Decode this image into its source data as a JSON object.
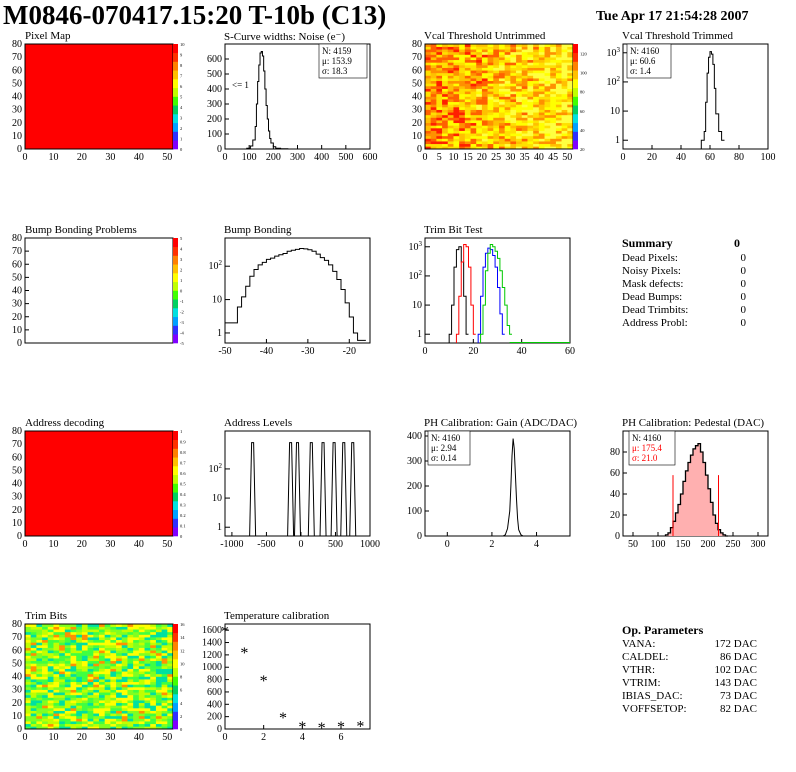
{
  "header": {
    "title": "M0846-070417.15:20 T-10b (C13)",
    "date": "Tue Apr 17 21:54:28 2007"
  },
  "palette": {
    "rainbow": [
      "#7f00ff",
      "#3030ff",
      "#00a0ff",
      "#00e0e0",
      "#00d060",
      "#40ff00",
      "#c0ff00",
      "#ffff00",
      "#ffc000",
      "#ff8000",
      "#ff3000",
      "#ff0000"
    ],
    "red": "#ff0000",
    "green": "#00c800",
    "blue": "#0000ff"
  },
  "summary": {
    "title": "Summary",
    "total": "0",
    "rows": [
      {
        "label": "Dead Pixels:",
        "value": "0"
      },
      {
        "label": "Noisy Pixels:",
        "value": "0"
      },
      {
        "label": "Mask defects:",
        "value": "0"
      },
      {
        "label": "Dead Bumps:",
        "value": "0"
      },
      {
        "label": "Dead Trimbits:",
        "value": "0"
      },
      {
        "label": "Address Probl:",
        "value": "0"
      }
    ]
  },
  "op_params": {
    "title": "Op. Parameters",
    "rows": [
      {
        "label": "VANA:",
        "value": "172 DAC"
      },
      {
        "label": "CALDEL:",
        "value": "86 DAC"
      },
      {
        "label": "VTHR:",
        "value": "102 DAC"
      },
      {
        "label": "VTRIM:",
        "value": "143 DAC"
      },
      {
        "label": "IBIAS_DAC:",
        "value": "73 DAC"
      },
      {
        "label": "VOFFSETOP:",
        "value": "82 DAC"
      }
    ]
  },
  "chart_data": [
    {
      "id": "pixel-map",
      "type": "heatmap",
      "title": "Pixel Map",
      "xlim": [
        0,
        52
      ],
      "ylim": [
        0,
        80
      ],
      "xticks": [
        0,
        10,
        20,
        30,
        40,
        50
      ],
      "yticks": [
        0,
        10,
        20,
        30,
        40,
        50,
        60,
        70,
        80
      ],
      "fill": "uniform-max",
      "zlim": [
        0,
        10
      ],
      "zticks": [
        0,
        1,
        2,
        3,
        4,
        5,
        6,
        7,
        8,
        9,
        10
      ]
    },
    {
      "id": "scurve",
      "type": "line",
      "title": "S-Curve widths: Noise (e⁻)",
      "xlim": [
        0,
        600
      ],
      "ylim": [
        0,
        700
      ],
      "xticks": [
        0,
        100,
        200,
        300,
        400,
        500,
        600
      ],
      "yticks": [
        0,
        100,
        200,
        300,
        400,
        500,
        600
      ],
      "stats": [
        "N: 4159",
        "μ: 153.9",
        "σ: 18.3"
      ],
      "annotation": "<= 1",
      "x": [
        70,
        90,
        105,
        115,
        125,
        130,
        135,
        140,
        145,
        150,
        155,
        160,
        165,
        170,
        175,
        180,
        185,
        190,
        200,
        210,
        230,
        260,
        290,
        300
      ],
      "y": [
        0,
        5,
        20,
        60,
        150,
        300,
        450,
        560,
        640,
        650,
        620,
        520,
        400,
        290,
        200,
        120,
        70,
        40,
        15,
        5,
        2,
        0,
        0,
        0
      ]
    },
    {
      "id": "vcal-untrimmed",
      "type": "heatmap",
      "title": "Vcal Threshold Untrimmed",
      "xlim": [
        0,
        52
      ],
      "ylim": [
        0,
        80
      ],
      "xticks": [
        0,
        5,
        10,
        15,
        20,
        25,
        30,
        35,
        40,
        45,
        50
      ],
      "yticks": [
        0,
        10,
        20,
        30,
        40,
        50,
        60,
        70,
        80
      ],
      "fill": "noise-orange-yellow",
      "zlim": [
        20,
        130
      ],
      "zticks": [
        20,
        40,
        60,
        80,
        100,
        120
      ]
    },
    {
      "id": "vcal-trimmed",
      "type": "line",
      "title": "Vcal Threshold Trimmed",
      "xlim": [
        0,
        100
      ],
      "ylim_log": [
        0.5,
        2000
      ],
      "xticks": [
        0,
        20,
        40,
        60,
        80,
        100
      ],
      "yticks_log": [
        1,
        10,
        100,
        1000
      ],
      "stats": [
        "N: 4160",
        "μ: 60.6",
        "σ:  1.4"
      ],
      "x": [
        54,
        56,
        57,
        58,
        59,
        60,
        61,
        62,
        63,
        64,
        66,
        68
      ],
      "y": [
        1,
        2,
        20,
        200,
        700,
        1100,
        900,
        400,
        60,
        8,
        2,
        1
      ]
    },
    {
      "id": "bump-problems",
      "type": "heatmap",
      "title": "Bump Bonding Problems",
      "xlim": [
        0,
        52
      ],
      "ylim": [
        0,
        80
      ],
      "xticks": [],
      "yticks": [
        0,
        10,
        20,
        30,
        40,
        50,
        60,
        70,
        80
      ],
      "fill": "empty",
      "zlim": [
        -5,
        5
      ],
      "zticks": [
        -5,
        -4,
        -3,
        -2,
        -1,
        0,
        1,
        2,
        3,
        4,
        5
      ]
    },
    {
      "id": "bump-bonding",
      "type": "line",
      "title": "Bump Bonding",
      "xlim": [
        -50,
        -15
      ],
      "ylim_log": [
        0.5,
        700
      ],
      "xticks": [
        -50,
        -40,
        -30,
        -20
      ],
      "yticks_log": [
        1,
        10,
        100
      ],
      "x": [
        -50,
        -48,
        -47,
        -46,
        -45,
        -44,
        -43,
        -42,
        -41,
        -40,
        -39,
        -38,
        -37,
        -36,
        -35,
        -34,
        -33,
        -32,
        -31,
        -30,
        -29,
        -28,
        -27,
        -26,
        -25,
        -24,
        -23,
        -22,
        -21,
        -20,
        -19,
        -18,
        -17
      ],
      "y": [
        2,
        2,
        6,
        12,
        25,
        50,
        80,
        110,
        130,
        160,
        175,
        200,
        220,
        240,
        280,
        300,
        320,
        340,
        330,
        310,
        280,
        230,
        180,
        150,
        110,
        70,
        40,
        20,
        8,
        3,
        1,
        0.6,
        0.6
      ]
    },
    {
      "id": "trim-bit-test",
      "type": "line",
      "title": "Trim Bit Test",
      "xlim": [
        0,
        60
      ],
      "ylim_log": [
        0.5,
        2000
      ],
      "xticks": [
        0,
        20,
        40,
        60
      ],
      "yticks_log": [
        1,
        10,
        100,
        1000
      ],
      "series": [
        {
          "color": "black",
          "x": [
            10,
            11,
            12,
            13,
            14,
            15,
            16,
            17
          ],
          "y": [
            1,
            10,
            200,
            800,
            1000,
            300,
            20,
            1
          ]
        },
        {
          "color": "red",
          "x": [
            13,
            14,
            15,
            16,
            17,
            18,
            19,
            20
          ],
          "y": [
            1,
            20,
            300,
            1200,
            1000,
            200,
            10,
            1
          ]
        },
        {
          "color": "blue",
          "x": [
            22,
            23,
            24,
            25,
            26,
            27,
            28,
            29,
            30,
            31,
            32
          ],
          "y": [
            1,
            20,
            200,
            600,
            900,
            800,
            500,
            200,
            40,
            5,
            1
          ]
        },
        {
          "color": "green",
          "x": [
            23,
            24,
            25,
            26,
            27,
            28,
            29,
            30,
            31,
            32,
            33,
            34,
            35
          ],
          "y": [
            1,
            10,
            150,
            600,
            1200,
            1000,
            700,
            400,
            150,
            40,
            10,
            2,
            1
          ]
        }
      ]
    },
    {
      "id": "address-decoding",
      "type": "heatmap",
      "title": "Address decoding",
      "xlim": [
        0,
        52
      ],
      "ylim": [
        0,
        80
      ],
      "xticks": [
        0,
        10,
        20,
        30,
        40,
        50
      ],
      "yticks": [
        0,
        10,
        20,
        30,
        40,
        50,
        60,
        70,
        80
      ],
      "fill": "uniform-max",
      "zlim": [
        0,
        1
      ],
      "zticks": [
        0,
        0.1,
        0.2,
        0.3,
        0.4,
        0.5,
        0.6,
        0.7,
        0.8,
        0.9,
        1
      ]
    },
    {
      "id": "address-levels",
      "type": "line",
      "title": "Address Levels",
      "xlim": [
        -1100,
        1000
      ],
      "ylim_log": [
        0.5,
        2000
      ],
      "xticks": [
        -1000,
        -500,
        0,
        500,
        1000
      ],
      "yticks_log": [
        1,
        10,
        100
      ],
      "peaks": [
        -700,
        -150,
        -50,
        150,
        320,
        480,
        620,
        750
      ],
      "peak_height": 800
    },
    {
      "id": "ph-gain",
      "type": "line",
      "title": "PH Calibration: Gain (ADC/DAC)",
      "xlim": [
        -1,
        5.5
      ],
      "ylim": [
        0,
        420
      ],
      "xticks": [
        0,
        2,
        4
      ],
      "yticks": [
        0,
        100,
        200,
        300,
        400
      ],
      "stats": [
        "N: 4160",
        "μ: 2.94",
        "σ: 0.14"
      ],
      "x": [
        2.5,
        2.6,
        2.7,
        2.8,
        2.85,
        2.9,
        2.95,
        3.0,
        3.05,
        3.1,
        3.15,
        3.2,
        3.3,
        3.4
      ],
      "y": [
        0,
        5,
        30,
        100,
        200,
        320,
        390,
        350,
        250,
        150,
        70,
        25,
        5,
        0
      ]
    },
    {
      "id": "ph-pedestal",
      "type": "line",
      "title": "PH Calibration: Pedestal (DAC)",
      "xlim": [
        30,
        320
      ],
      "ylim": [
        0,
        100
      ],
      "xticks": [
        50,
        100,
        150,
        200,
        250,
        300
      ],
      "yticks": [
        0,
        20,
        40,
        60,
        80
      ],
      "stats": [
        "N: 4160",
        "μ: 175.4",
        "σ: 21.0"
      ],
      "range_lines": [
        130,
        221
      ],
      "x": [
        115,
        120,
        125,
        130,
        135,
        140,
        145,
        150,
        155,
        160,
        165,
        170,
        175,
        180,
        185,
        190,
        195,
        200,
        205,
        210,
        215,
        220,
        225,
        230,
        235
      ],
      "y": [
        1,
        3,
        8,
        14,
        22,
        30,
        40,
        52,
        62,
        70,
        77,
        83,
        86,
        88,
        80,
        70,
        58,
        45,
        32,
        20,
        12,
        6,
        3,
        1,
        0
      ]
    },
    {
      "id": "trim-bits",
      "type": "heatmap",
      "title": "Trim Bits",
      "xlim": [
        0,
        52
      ],
      "ylim": [
        0,
        80
      ],
      "xticks": [
        0,
        10,
        20,
        30,
        40,
        50
      ],
      "yticks": [
        0,
        10,
        20,
        30,
        40,
        50,
        60,
        70,
        80
      ],
      "fill": "noise-green-yellow",
      "zlim": [
        0,
        16
      ],
      "zticks": [
        0,
        2,
        4,
        6,
        8,
        10,
        12,
        14,
        16
      ]
    },
    {
      "id": "temperature",
      "type": "scatter",
      "title": "Temperature calibration",
      "xlim": [
        0,
        7.5
      ],
      "ylim": [
        0,
        1700
      ],
      "xticks": [
        0,
        2,
        4,
        6
      ],
      "yticks": [
        0,
        200,
        400,
        600,
        800,
        1000,
        1200,
        1400,
        1600
      ],
      "x": [
        0,
        1,
        2,
        3,
        4,
        5,
        6,
        7
      ],
      "y": [
        1580,
        1230,
        780,
        180,
        30,
        20,
        30,
        40
      ]
    }
  ]
}
